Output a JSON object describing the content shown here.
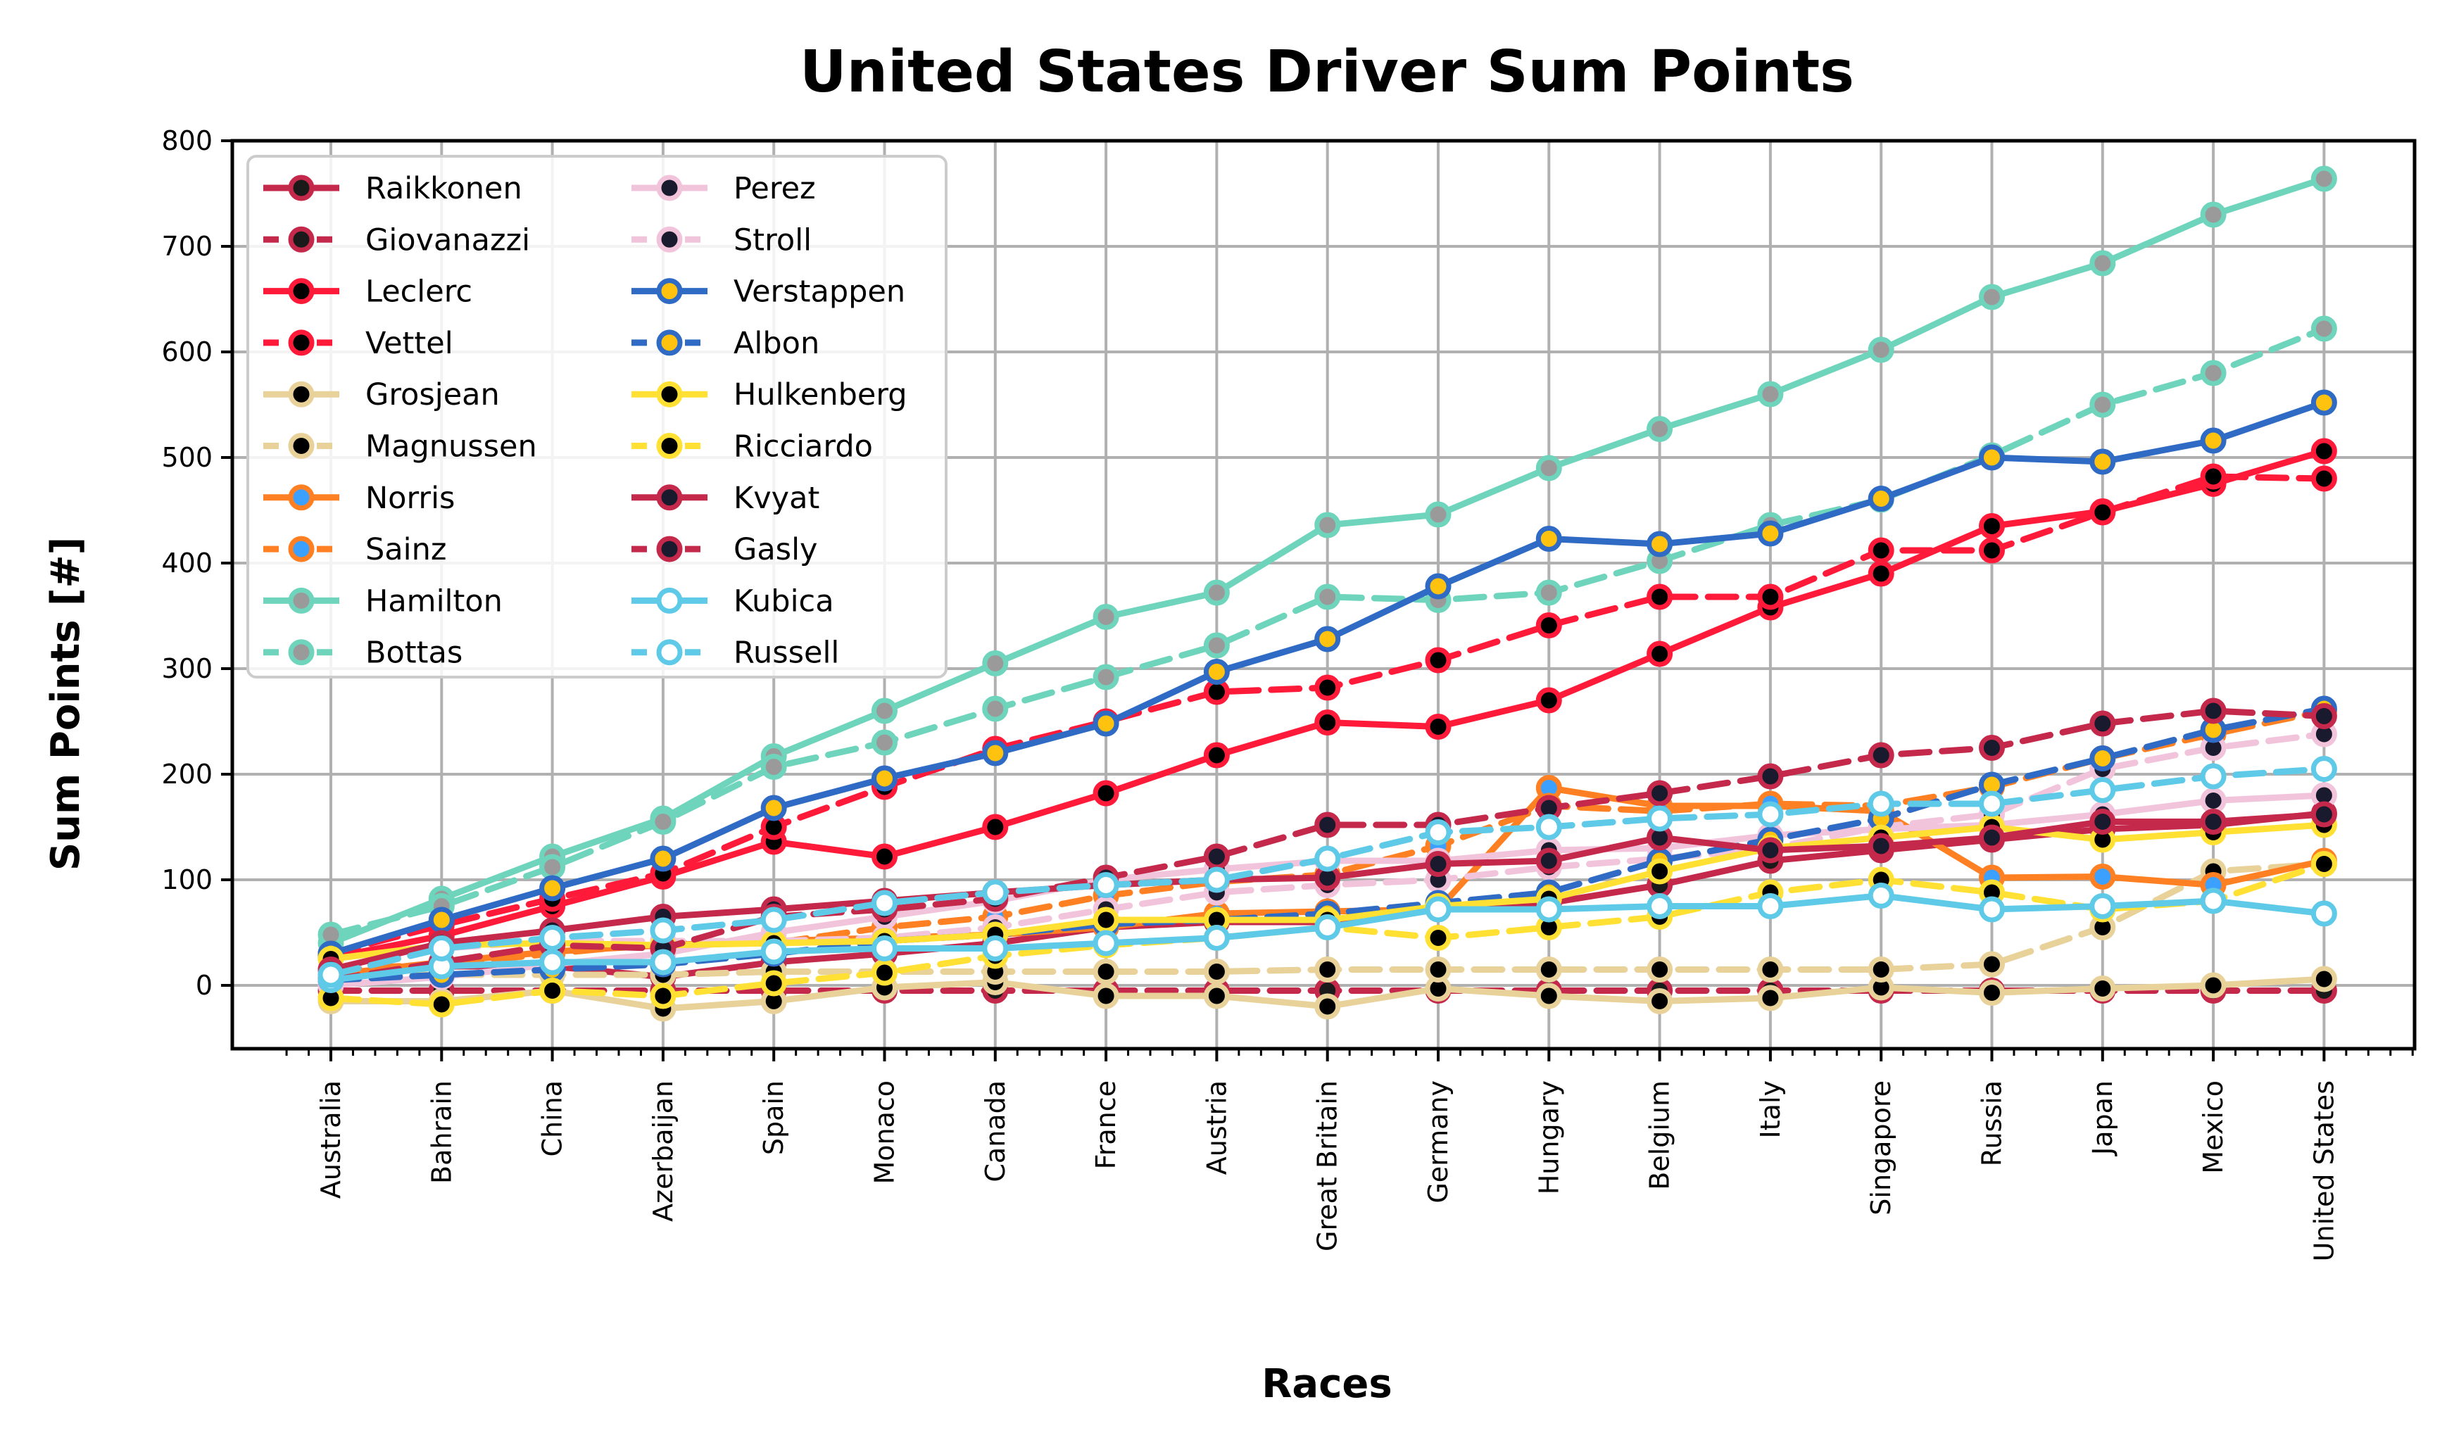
{
  "chart_data": {
    "type": "line",
    "title": "United States Driver Sum Points",
    "xlabel": "Races",
    "ylabel": "Sum Points [#]",
    "ylim": [
      -60,
      800
    ],
    "yticks": [
      0,
      100,
      200,
      300,
      400,
      500,
      600,
      700,
      800
    ],
    "grid": true,
    "legend_position": "top-left",
    "legend_columns": 2,
    "categories": [
      "Australia",
      "Bahrain",
      "China",
      "Azerbaijan",
      "Spain",
      "Monaco",
      "Canada",
      "France",
      "Austria",
      "Great Britain",
      "Germany",
      "Hungary",
      "Belgium",
      "Italy",
      "Singapore",
      "Russia",
      "Japan",
      "Mexico",
      "United States"
    ],
    "series": [
      {
        "name": "Raikkonen",
        "color": "#c4284a",
        "marker_fill": "#1a1a1a",
        "style": "solid",
        "values": [
          8,
          18,
          18,
          8,
          22,
          30,
          40,
          55,
          60,
          60,
          75,
          78,
          95,
          118,
          128,
          138,
          148,
          152,
          163
        ]
      },
      {
        "name": "Giovanazzi",
        "color": "#c4284a",
        "marker_fill": "#1a1a1a",
        "style": "dotted",
        "values": [
          -5,
          -5,
          -5,
          -5,
          -5,
          -5,
          -5,
          -5,
          -5,
          -5,
          -5,
          -5,
          -5,
          -5,
          -5,
          -5,
          -5,
          -5,
          -5
        ]
      },
      {
        "name": "Leclerc",
        "color": "#ff1a3a",
        "marker_fill": "#000000",
        "style": "solid",
        "values": [
          26,
          47,
          75,
          103,
          136,
          122,
          150,
          182,
          218,
          249,
          245,
          270,
          314,
          358,
          390,
          435,
          449,
          475,
          506
        ]
      },
      {
        "name": "Vettel",
        "color": "#ff1a3a",
        "marker_fill": "#000000",
        "style": "dotted",
        "values": [
          30,
          57,
          82,
          106,
          150,
          188,
          224,
          250,
          278,
          282,
          308,
          341,
          368,
          368,
          412,
          412,
          448,
          482,
          480
        ]
      },
      {
        "name": "Grosjean",
        "color": "#e8d29a",
        "marker_fill": "#000000",
        "style": "solid",
        "values": [
          -15,
          -15,
          -5,
          -22,
          -15,
          -2,
          3,
          -10,
          -10,
          -20,
          -3,
          -10,
          -15,
          -12,
          -2,
          -7,
          -3,
          0,
          6
        ]
      },
      {
        "name": "Magnussen",
        "color": "#e8d29a",
        "marker_fill": "#000000",
        "style": "dotted",
        "values": [
          10,
          10,
          10,
          10,
          13,
          13,
          13,
          13,
          13,
          15,
          15,
          15,
          15,
          15,
          15,
          20,
          55,
          108,
          115
        ]
      },
      {
        "name": "Norris",
        "color": "#ff8022",
        "marker_fill": "#3ba0ff",
        "style": "solid",
        "values": [
          10,
          22,
          32,
          38,
          42,
          45,
          48,
          55,
          68,
          70,
          72,
          187,
          170,
          170,
          165,
          102,
          103,
          95,
          118
        ]
      },
      {
        "name": "Sainz",
        "color": "#ff8022",
        "marker_fill": "#3ba0ff",
        "style": "dotted",
        "values": [
          15,
          20,
          30,
          40,
          40,
          55,
          65,
          85,
          98,
          105,
          132,
          170,
          165,
          172,
          170,
          188,
          215,
          238,
          260
        ]
      },
      {
        "name": "Hamilton",
        "color": "#6fd4bc",
        "marker_fill": "#9a9a9a",
        "style": "solid",
        "values": [
          40,
          82,
          122,
          158,
          217,
          260,
          305,
          349,
          372,
          436,
          446,
          490,
          527,
          560,
          602,
          652,
          684,
          730,
          764
        ]
      },
      {
        "name": "Bottas",
        "color": "#6fd4bc",
        "marker_fill": "#9a9a9a",
        "style": "dotted",
        "values": [
          48,
          75,
          112,
          155,
          207,
          230,
          262,
          292,
          322,
          368,
          365,
          372,
          402,
          436,
          460,
          502,
          550,
          580,
          622
        ]
      },
      {
        "name": "Perez",
        "color": "#f2c4dc",
        "marker_fill": "#1a1a2e",
        "style": "solid",
        "values": [
          0,
          8,
          20,
          30,
          50,
          65,
          80,
          100,
          110,
          118,
          118,
          128,
          130,
          142,
          148,
          152,
          162,
          175,
          180
        ]
      },
      {
        "name": "Stroll",
        "color": "#f2c4dc",
        "marker_fill": "#1a1a2e",
        "style": "dotted",
        "values": [
          12,
          35,
          42,
          42,
          42,
          45,
          55,
          72,
          88,
          95,
          100,
          112,
          120,
          130,
          150,
          162,
          205,
          225,
          238
        ]
      },
      {
        "name": "Verstappen",
        "color": "#2f6bc4",
        "marker_fill": "#ffc20e",
        "style": "solid",
        "values": [
          30,
          62,
          92,
          120,
          168,
          196,
          220,
          248,
          297,
          328,
          378,
          423,
          418,
          428,
          461,
          500,
          496,
          516,
          552
        ]
      },
      {
        "name": "Albon",
        "color": "#2f6bc4",
        "marker_fill": "#ffc20e",
        "style": "dotted",
        "values": [
          5,
          10,
          15,
          20,
          30,
          42,
          48,
          58,
          62,
          68,
          78,
          88,
          118,
          138,
          158,
          190,
          215,
          242,
          262
        ]
      },
      {
        "name": "Hulkenberg",
        "color": "#ffe033",
        "marker_fill": "#000000",
        "style": "solid",
        "values": [
          25,
          38,
          40,
          38,
          40,
          42,
          48,
          62,
          62,
          62,
          75,
          82,
          108,
          130,
          140,
          150,
          138,
          145,
          152
        ]
      },
      {
        "name": "Ricciardo",
        "color": "#ffe033",
        "marker_fill": "#000000",
        "style": "dotted",
        "values": [
          -12,
          -18,
          -5,
          -10,
          2,
          12,
          28,
          38,
          45,
          55,
          45,
          55,
          65,
          88,
          100,
          88,
          72,
          80,
          115
        ]
      },
      {
        "name": "Kvyat",
        "color": "#c4284a",
        "marker_fill": "#1a1a2e",
        "style": "solid",
        "values": [
          15,
          40,
          52,
          65,
          72,
          80,
          88,
          95,
          100,
          102,
          115,
          118,
          140,
          128,
          132,
          140,
          155,
          155,
          162
        ]
      },
      {
        "name": "Gasly",
        "color": "#c4284a",
        "marker_fill": "#1a1a2e",
        "style": "dotted",
        "values": [
          5,
          22,
          38,
          35,
          65,
          72,
          82,
          102,
          122,
          152,
          152,
          168,
          182,
          198,
          218,
          225,
          248,
          260,
          255
        ]
      },
      {
        "name": "Kubica",
        "color": "#5ecae8",
        "marker_fill": "#ffffff",
        "style": "solid",
        "values": [
          5,
          18,
          22,
          22,
          32,
          35,
          35,
          40,
          45,
          55,
          72,
          72,
          75,
          75,
          85,
          72,
          75,
          80,
          68
        ]
      },
      {
        "name": "Russell",
        "color": "#5ecae8",
        "marker_fill": "#ffffff",
        "style": "dotted",
        "values": [
          10,
          35,
          45,
          52,
          62,
          78,
          88,
          95,
          100,
          120,
          145,
          150,
          158,
          162,
          172,
          172,
          185,
          198,
          205
        ]
      }
    ]
  }
}
